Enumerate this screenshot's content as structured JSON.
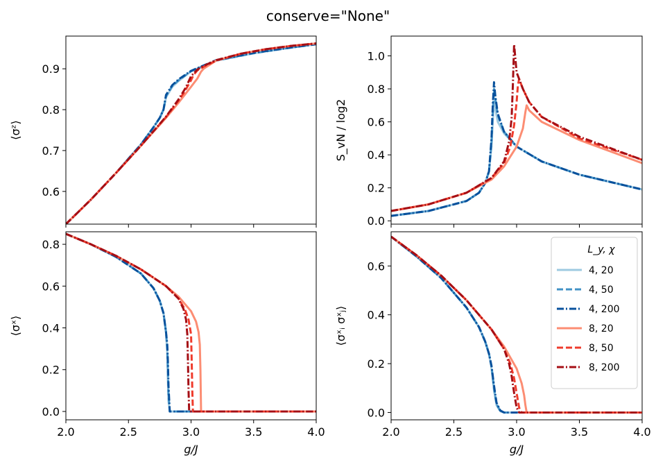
{
  "suptitle": "conserve=\"None\"",
  "chart_data": [
    {
      "type": "line",
      "ylabel": "⟨σᶻ⟩",
      "xlim": [
        2.0,
        4.0
      ],
      "ylim": [
        0.52,
        0.98
      ],
      "xticks": [],
      "yticks": [
        0.6,
        0.7,
        0.8,
        0.9
      ],
      "ytick_labels": [
        "0.6",
        "0.7",
        "0.8",
        "0.9"
      ],
      "series": [
        {
          "key": "s4_20",
          "x": [
            2.0,
            2.2,
            2.4,
            2.6,
            2.7,
            2.75,
            2.78,
            2.8,
            2.85,
            2.9,
            3.0,
            3.2,
            3.5,
            3.8,
            4.0
          ],
          "y": [
            0.52,
            0.58,
            0.645,
            0.715,
            0.757,
            0.78,
            0.8,
            0.83,
            0.856,
            0.87,
            0.894,
            0.92,
            0.938,
            0.952,
            0.96
          ]
        },
        {
          "key": "s4_50",
          "x": [
            2.0,
            2.2,
            2.4,
            2.6,
            2.7,
            2.75,
            2.78,
            2.8,
            2.85,
            2.9,
            3.0,
            3.2,
            3.5,
            3.8,
            4.0
          ],
          "y": [
            0.52,
            0.58,
            0.645,
            0.715,
            0.757,
            0.78,
            0.8,
            0.833,
            0.858,
            0.872,
            0.894,
            0.92,
            0.938,
            0.952,
            0.96
          ]
        },
        {
          "key": "s4_200",
          "x": [
            2.0,
            2.2,
            2.4,
            2.6,
            2.7,
            2.75,
            2.78,
            2.8,
            2.85,
            2.9,
            3.0,
            3.2,
            3.5,
            3.8,
            4.0
          ],
          "y": [
            0.52,
            0.58,
            0.645,
            0.715,
            0.757,
            0.78,
            0.8,
            0.836,
            0.86,
            0.874,
            0.895,
            0.921,
            0.939,
            0.952,
            0.96
          ]
        },
        {
          "key": "s8_20",
          "x": [
            2.0,
            2.2,
            2.4,
            2.6,
            2.8,
            2.9,
            3.0,
            3.05,
            3.08,
            3.1,
            3.2,
            3.4,
            3.6,
            3.8,
            4.0
          ],
          "y": [
            0.52,
            0.58,
            0.645,
            0.712,
            0.78,
            0.817,
            0.856,
            0.876,
            0.893,
            0.9,
            0.92,
            0.937,
            0.948,
            0.956,
            0.962
          ]
        },
        {
          "key": "s8_50",
          "x": [
            2.0,
            2.2,
            2.4,
            2.6,
            2.8,
            2.9,
            2.95,
            3.0,
            3.02,
            3.05,
            3.1,
            3.2,
            3.4,
            3.6,
            3.8,
            4.0
          ],
          "y": [
            0.52,
            0.58,
            0.645,
            0.712,
            0.782,
            0.822,
            0.845,
            0.872,
            0.885,
            0.896,
            0.905,
            0.92,
            0.937,
            0.948,
            0.956,
            0.962
          ]
        },
        {
          "key": "s8_200",
          "x": [
            2.0,
            2.2,
            2.4,
            2.6,
            2.8,
            2.9,
            2.95,
            2.97,
            3.0,
            3.05,
            3.1,
            3.2,
            3.4,
            3.6,
            3.8,
            4.0
          ],
          "y": [
            0.52,
            0.58,
            0.645,
            0.712,
            0.783,
            0.825,
            0.85,
            0.862,
            0.882,
            0.898,
            0.907,
            0.921,
            0.937,
            0.948,
            0.956,
            0.962
          ]
        }
      ]
    },
    {
      "type": "line",
      "ylabel": "S_vN / log2",
      "xlim": [
        2.0,
        4.0
      ],
      "ylim": [
        -0.02,
        1.12
      ],
      "xticks": [],
      "yticks": [
        0.0,
        0.2,
        0.4,
        0.6,
        0.8,
        1.0
      ],
      "ytick_labels": [
        "0.0",
        "0.2",
        "0.4",
        "0.6",
        "0.8",
        "1.0"
      ],
      "series": [
        {
          "key": "s4_20",
          "x": [
            2.0,
            2.3,
            2.6,
            2.7,
            2.75,
            2.78,
            2.8,
            2.81,
            2.82,
            2.83,
            2.85,
            2.9,
            3.0,
            3.2,
            3.5,
            4.0
          ],
          "y": [
            0.03,
            0.06,
            0.12,
            0.17,
            0.23,
            0.3,
            0.45,
            0.6,
            0.72,
            0.68,
            0.6,
            0.53,
            0.45,
            0.36,
            0.28,
            0.19
          ]
        },
        {
          "key": "s4_50",
          "x": [
            2.0,
            2.3,
            2.6,
            2.7,
            2.75,
            2.78,
            2.8,
            2.81,
            2.82,
            2.83,
            2.85,
            2.9,
            3.0,
            3.2,
            3.5,
            4.0
          ],
          "y": [
            0.03,
            0.06,
            0.12,
            0.17,
            0.23,
            0.3,
            0.48,
            0.66,
            0.8,
            0.74,
            0.64,
            0.54,
            0.45,
            0.36,
            0.28,
            0.19
          ]
        },
        {
          "key": "s4_200",
          "x": [
            2.0,
            2.3,
            2.6,
            2.7,
            2.75,
            2.78,
            2.8,
            2.81,
            2.82,
            2.83,
            2.85,
            2.9,
            3.0,
            3.2,
            3.5,
            4.0
          ],
          "y": [
            0.03,
            0.06,
            0.12,
            0.17,
            0.23,
            0.3,
            0.5,
            0.7,
            0.84,
            0.76,
            0.65,
            0.54,
            0.45,
            0.36,
            0.28,
            0.19
          ]
        },
        {
          "key": "s8_20",
          "x": [
            2.0,
            2.3,
            2.6,
            2.8,
            2.9,
            3.0,
            3.05,
            3.07,
            3.08,
            3.1,
            3.2,
            3.5,
            4.0
          ],
          "y": [
            0.06,
            0.1,
            0.17,
            0.25,
            0.33,
            0.45,
            0.56,
            0.66,
            0.7,
            0.67,
            0.6,
            0.49,
            0.35
          ]
        },
        {
          "key": "s8_50",
          "x": [
            2.0,
            2.3,
            2.6,
            2.8,
            2.9,
            2.95,
            2.98,
            3.0,
            3.01,
            3.02,
            3.05,
            3.1,
            3.2,
            3.5,
            4.0
          ],
          "y": [
            0.06,
            0.1,
            0.17,
            0.26,
            0.35,
            0.45,
            0.58,
            0.72,
            0.82,
            0.86,
            0.8,
            0.72,
            0.63,
            0.5,
            0.37
          ]
        },
        {
          "key": "s8_200",
          "x": [
            2.0,
            2.3,
            2.6,
            2.8,
            2.9,
            2.94,
            2.96,
            2.97,
            2.98,
            3.0,
            3.05,
            3.1,
            3.2,
            3.5,
            4.0
          ],
          "y": [
            0.06,
            0.1,
            0.17,
            0.26,
            0.36,
            0.48,
            0.62,
            0.82,
            1.07,
            0.9,
            0.8,
            0.72,
            0.63,
            0.51,
            0.37
          ]
        }
      ]
    },
    {
      "type": "line",
      "ylabel": "⟨σˣ⟩",
      "xlabel": "g/J",
      "xlim": [
        2.0,
        4.0
      ],
      "ylim": [
        -0.04,
        0.86
      ],
      "xticks": [
        2.0,
        2.5,
        3.0,
        3.5,
        4.0
      ],
      "xtick_labels": [
        "2.0",
        "2.5",
        "3.0",
        "3.5",
        "4.0"
      ],
      "yticks": [
        0.0,
        0.2,
        0.4,
        0.6,
        0.8
      ],
      "ytick_labels": [
        "0.0",
        "0.2",
        "0.4",
        "0.6",
        "0.8"
      ],
      "series": [
        {
          "key": "s4_20",
          "x": [
            2.0,
            2.2,
            2.4,
            2.6,
            2.7,
            2.75,
            2.78,
            2.8,
            2.81,
            2.815,
            2.82,
            2.83,
            4.0
          ],
          "y": [
            0.85,
            0.8,
            0.74,
            0.66,
            0.59,
            0.53,
            0.47,
            0.38,
            0.28,
            0.15,
            0.05,
            0.0,
            0.0
          ]
        },
        {
          "key": "s4_50",
          "x": [
            2.0,
            2.2,
            2.4,
            2.6,
            2.7,
            2.75,
            2.78,
            2.8,
            2.81,
            2.815,
            2.82,
            2.83,
            4.0
          ],
          "y": [
            0.85,
            0.8,
            0.74,
            0.66,
            0.59,
            0.53,
            0.47,
            0.38,
            0.3,
            0.2,
            0.08,
            0.0,
            0.0
          ]
        },
        {
          "key": "s4_200",
          "x": [
            2.0,
            2.2,
            2.4,
            2.6,
            2.7,
            2.75,
            2.78,
            2.8,
            2.81,
            2.815,
            2.82,
            2.83,
            4.0
          ],
          "y": [
            0.85,
            0.8,
            0.74,
            0.66,
            0.59,
            0.53,
            0.47,
            0.38,
            0.32,
            0.24,
            0.12,
            0.0,
            0.0
          ]
        },
        {
          "key": "s8_20",
          "x": [
            2.0,
            2.2,
            2.4,
            2.6,
            2.8,
            2.9,
            3.0,
            3.04,
            3.06,
            3.07,
            3.075,
            3.08,
            4.0
          ],
          "y": [
            0.85,
            0.8,
            0.745,
            0.68,
            0.6,
            0.55,
            0.48,
            0.43,
            0.38,
            0.32,
            0.2,
            0.0,
            0.0
          ]
        },
        {
          "key": "s8_50",
          "x": [
            2.0,
            2.2,
            2.4,
            2.6,
            2.8,
            2.9,
            2.95,
            2.98,
            3.0,
            3.005,
            3.01,
            3.015,
            4.0
          ],
          "y": [
            0.85,
            0.8,
            0.745,
            0.68,
            0.6,
            0.54,
            0.49,
            0.44,
            0.37,
            0.25,
            0.1,
            0.0,
            0.0
          ]
        },
        {
          "key": "s8_200",
          "x": [
            2.0,
            2.2,
            2.4,
            2.6,
            2.8,
            2.9,
            2.94,
            2.96,
            2.97,
            2.975,
            2.98,
            2.985,
            4.0
          ],
          "y": [
            0.85,
            0.8,
            0.745,
            0.68,
            0.6,
            0.54,
            0.49,
            0.44,
            0.37,
            0.25,
            0.1,
            0.0,
            0.0
          ]
        }
      ]
    },
    {
      "type": "line",
      "ylabel": "⟨σˣᵢ σˣⱼ⟩",
      "xlabel": "g/J",
      "xlim": [
        2.0,
        4.0
      ],
      "ylim": [
        -0.03,
        0.74
      ],
      "xticks": [
        2.0,
        2.5,
        3.0,
        3.5,
        4.0
      ],
      "xtick_labels": [
        "2.0",
        "2.5",
        "3.0",
        "3.5",
        "4.0"
      ],
      "yticks": [
        0.0,
        0.2,
        0.4,
        0.6
      ],
      "ytick_labels": [
        "0.0",
        "0.2",
        "0.4",
        "0.6"
      ],
      "series": [
        {
          "key": "s4_20",
          "x": [
            2.0,
            2.2,
            2.4,
            2.6,
            2.7,
            2.75,
            2.78,
            2.8,
            2.82,
            2.84,
            2.87,
            2.9,
            4.0
          ],
          "y": [
            0.72,
            0.64,
            0.55,
            0.43,
            0.35,
            0.29,
            0.24,
            0.18,
            0.09,
            0.03,
            0.005,
            0.0,
            0.0
          ]
        },
        {
          "key": "s4_50",
          "x": [
            2.0,
            2.2,
            2.4,
            2.6,
            2.7,
            2.75,
            2.78,
            2.8,
            2.82,
            2.84,
            2.87,
            2.9,
            4.0
          ],
          "y": [
            0.72,
            0.64,
            0.55,
            0.43,
            0.35,
            0.29,
            0.24,
            0.19,
            0.1,
            0.035,
            0.006,
            0.0,
            0.0
          ]
        },
        {
          "key": "s4_200",
          "x": [
            2.0,
            2.2,
            2.4,
            2.6,
            2.7,
            2.75,
            2.78,
            2.8,
            2.82,
            2.84,
            2.87,
            2.9,
            4.0
          ],
          "y": [
            0.72,
            0.64,
            0.55,
            0.43,
            0.35,
            0.29,
            0.24,
            0.19,
            0.11,
            0.04,
            0.008,
            0.0,
            0.0
          ]
        },
        {
          "key": "s8_20",
          "x": [
            2.0,
            2.2,
            2.4,
            2.6,
            2.8,
            2.9,
            3.0,
            3.04,
            3.06,
            3.07,
            3.08,
            4.0
          ],
          "y": [
            0.72,
            0.645,
            0.56,
            0.46,
            0.34,
            0.27,
            0.18,
            0.12,
            0.07,
            0.03,
            0.0,
            0.0
          ]
        },
        {
          "key": "s8_50",
          "x": [
            2.0,
            2.2,
            2.4,
            2.6,
            2.8,
            2.9,
            2.95,
            2.98,
            3.0,
            3.02,
            3.04,
            4.0
          ],
          "y": [
            0.72,
            0.645,
            0.56,
            0.46,
            0.34,
            0.26,
            0.2,
            0.14,
            0.08,
            0.02,
            0.0,
            0.0
          ]
        },
        {
          "key": "s8_200",
          "x": [
            2.0,
            2.2,
            2.4,
            2.6,
            2.8,
            2.9,
            2.94,
            2.96,
            2.98,
            3.0,
            3.02,
            4.0
          ],
          "y": [
            0.72,
            0.645,
            0.56,
            0.46,
            0.34,
            0.26,
            0.2,
            0.15,
            0.08,
            0.02,
            0.0,
            0.0
          ]
        }
      ]
    }
  ],
  "series_styles": {
    "s4_20": {
      "label": "4,  20",
      "color": "#9ecae1",
      "dash": "solid"
    },
    "s4_50": {
      "label": "4,  50",
      "color": "#4292c6",
      "dash": "dashed"
    },
    "s4_200": {
      "label": "4,  200",
      "color": "#08519c",
      "dash": "dashdot"
    },
    "s8_20": {
      "label": "8,  20",
      "color": "#fc8d73",
      "dash": "solid"
    },
    "s8_50": {
      "label": "8,  50",
      "color": "#ef3b2c",
      "dash": "dashed"
    },
    "s8_200": {
      "label": "8,  200",
      "color": "#a50f15",
      "dash": "dashdot"
    }
  },
  "legend": {
    "title": "L_y,  χ",
    "location": "top-right of bottom-right panel",
    "order": [
      "s4_20",
      "s4_50",
      "s4_200",
      "s8_20",
      "s8_50",
      "s8_200"
    ]
  }
}
